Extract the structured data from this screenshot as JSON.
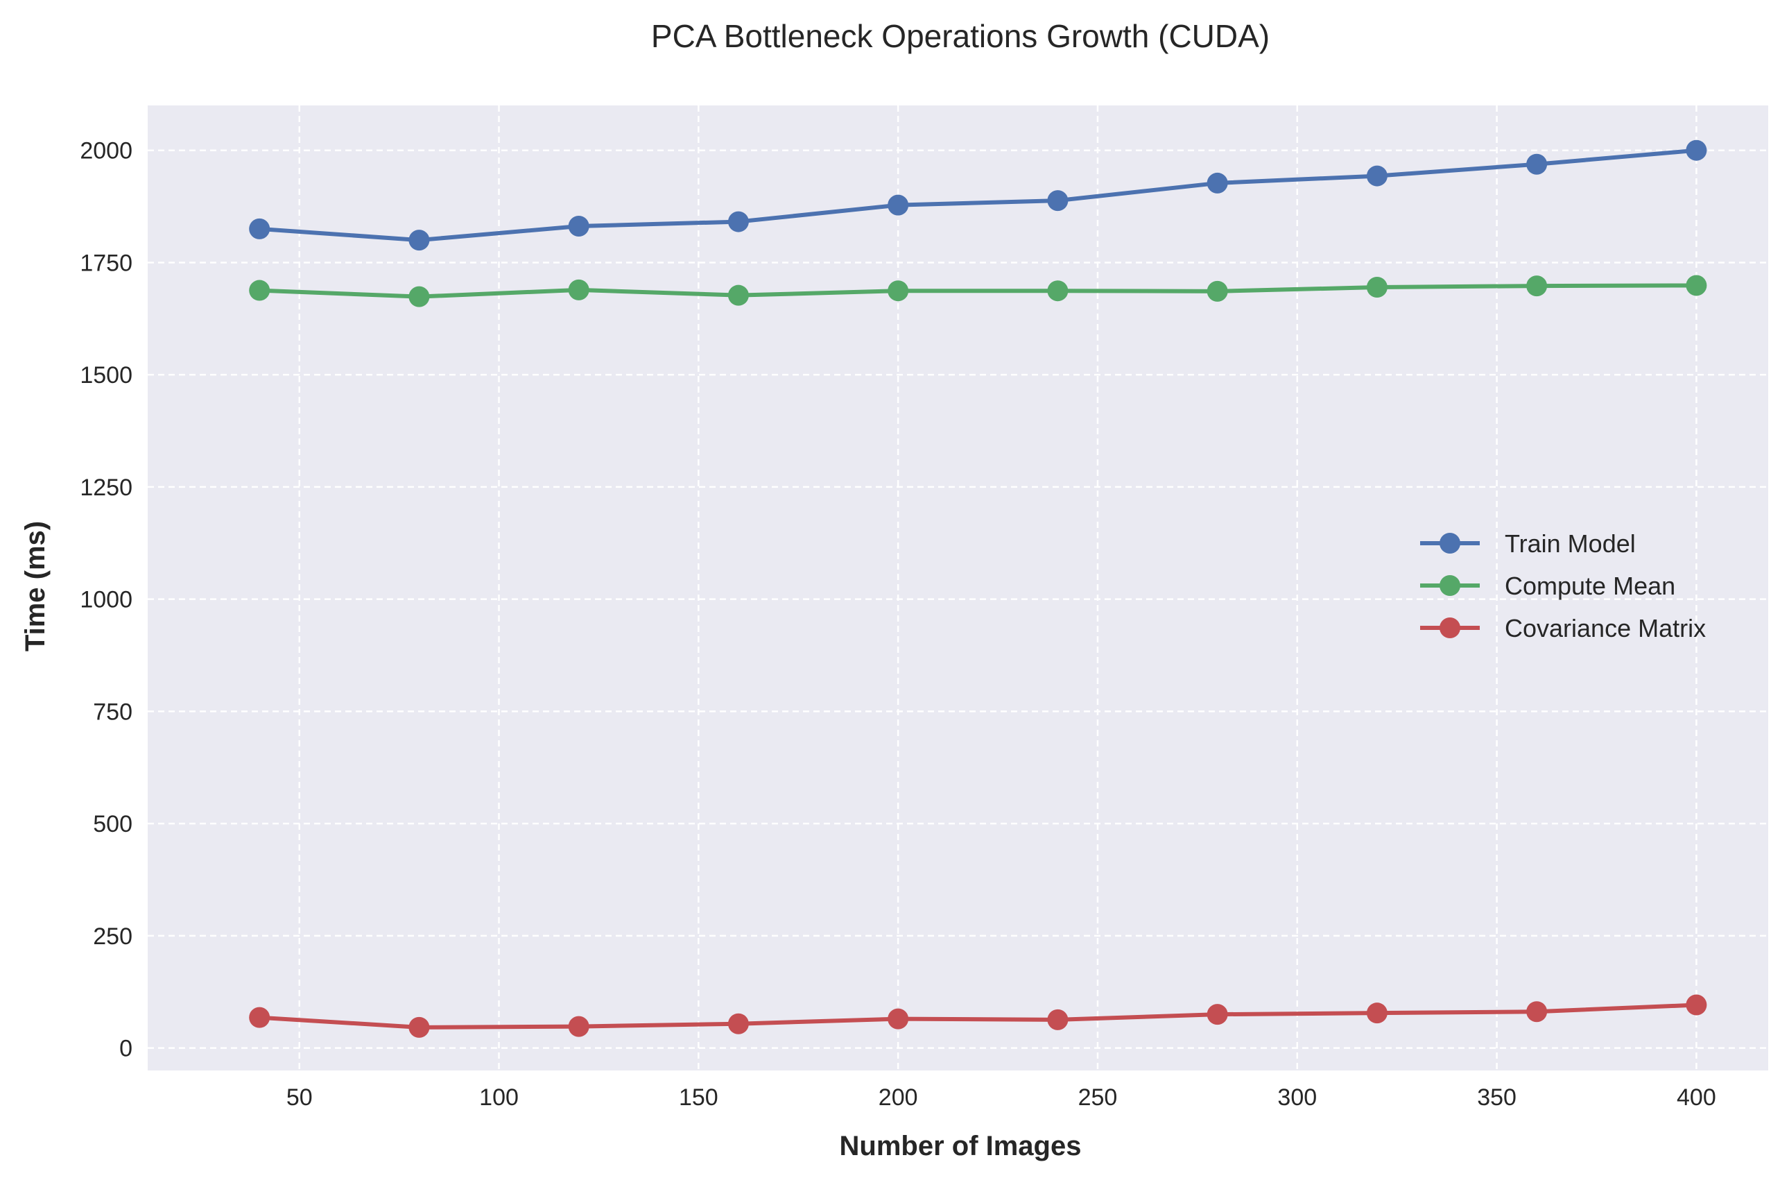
{
  "chart_data": {
    "type": "line",
    "title": "PCA Bottleneck Operations Growth (CUDA)",
    "xlabel": "Number of Images",
    "ylabel": "Time (ms)",
    "x": [
      40,
      80,
      120,
      160,
      200,
      240,
      280,
      320,
      360,
      400
    ],
    "xlim": [
      12,
      418
    ],
    "ylim": [
      -50,
      2100
    ],
    "xticks": [
      50,
      100,
      150,
      200,
      250,
      300,
      350,
      400
    ],
    "yticks": [
      0,
      250,
      500,
      750,
      1000,
      1250,
      1500,
      1750,
      2000
    ],
    "grid": true,
    "legend_position": "center-right",
    "series": [
      {
        "name": "Train Model",
        "color": "#4c72b0",
        "values": [
          1825,
          1800,
          1831,
          1841,
          1878,
          1888,
          1927,
          1943,
          1969,
          2000
        ]
      },
      {
        "name": "Compute Mean",
        "color": "#55a868",
        "values": [
          1688,
          1674,
          1689,
          1677,
          1687,
          1687,
          1686,
          1695,
          1698,
          1699
        ]
      },
      {
        "name": "Covariance Matrix",
        "color": "#c44e52",
        "values": [
          68,
          46,
          48,
          54,
          65,
          63,
          75,
          78,
          81,
          96
        ]
      }
    ]
  }
}
